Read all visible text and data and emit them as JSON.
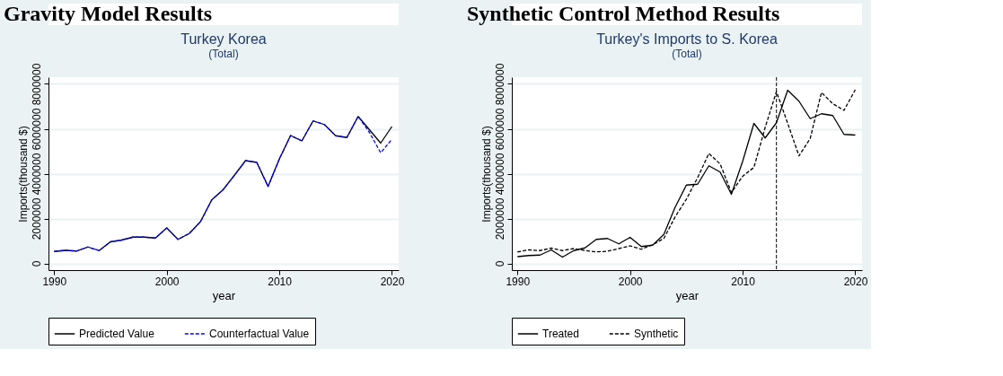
{
  "chart_data": [
    {
      "type": "line",
      "title": "Turkey Korea",
      "subtitle": "(Total)",
      "xlabel": "year",
      "ylabel": "Imports(thousand $)",
      "annotations": [
        "Gravity Model Results"
      ],
      "x": [
        1990,
        1991,
        1992,
        1993,
        1994,
        1995,
        1996,
        1997,
        1998,
        1999,
        2000,
        2001,
        2002,
        2003,
        2004,
        2005,
        2006,
        2007,
        2008,
        2009,
        2010,
        2011,
        2012,
        2013,
        2014,
        2015,
        2016,
        2017,
        2018,
        2019,
        2020
      ],
      "series": [
        {
          "name": "Predicted Value",
          "color": "#000000",
          "line_style": "solid",
          "values": [
            530000,
            580000,
            550000,
            730000,
            570000,
            960000,
            1040000,
            1170000,
            1170000,
            1130000,
            1580000,
            1070000,
            1330000,
            1860000,
            2830000,
            3280000,
            3920000,
            4580000,
            4500000,
            3430000,
            4650000,
            5700000,
            5460000,
            6350000,
            6190000,
            5690000,
            5610000,
            6550000,
            5960000,
            5360000,
            6100000
          ]
        },
        {
          "name": "Counterfactual Value",
          "color": "#0000ff",
          "line_style": "dashed",
          "values": [
            530000,
            580000,
            550000,
            730000,
            570000,
            960000,
            1040000,
            1170000,
            1170000,
            1130000,
            1580000,
            1070000,
            1330000,
            1860000,
            2830000,
            3280000,
            3920000,
            4580000,
            4500000,
            3430000,
            4650000,
            5700000,
            5460000,
            6350000,
            6190000,
            5690000,
            5610000,
            6550000,
            5840000,
            4930000,
            5530000
          ]
        }
      ],
      "xlim": [
        1989.5,
        2020.6
      ],
      "xticks": [
        1990,
        2000,
        2010,
        2020
      ],
      "ylim": [
        -300000,
        8300000
      ],
      "yticks": [
        0,
        2000000,
        4000000,
        6000000,
        8000000
      ],
      "grid": "y",
      "legend": "bottom",
      "marker": "none"
    },
    {
      "type": "line",
      "title": "Turkey's Imports to S. Korea",
      "subtitle": "(Total)",
      "xlabel": "year",
      "ylabel": "Imports(thousand $)",
      "annotations": [
        "Synthetic Control Method Results"
      ],
      "x": [
        1990,
        1991,
        1992,
        1993,
        1994,
        1995,
        1996,
        1997,
        1998,
        1999,
        2000,
        2001,
        2002,
        2003,
        2004,
        2005,
        2006,
        2007,
        2008,
        2009,
        2010,
        2011,
        2012,
        2013,
        2014,
        2015,
        2016,
        2017,
        2018,
        2019,
        2020
      ],
      "series": [
        {
          "name": "Treated",
          "color": "#000000",
          "line_style": "solid",
          "values": [
            300000,
            350000,
            370000,
            600000,
            280000,
            570000,
            690000,
            1070000,
            1110000,
            870000,
            1160000,
            750000,
            810000,
            1290000,
            2500000,
            3490000,
            3530000,
            4350000,
            4070000,
            3080000,
            4550000,
            6240000,
            5590000,
            6270000,
            7720000,
            7230000,
            6450000,
            6670000,
            6590000,
            5750000,
            5720000
          ]
        },
        {
          "name": "Synthetic",
          "color": "#000000",
          "line_style": "dashed",
          "values": [
            510000,
            600000,
            570000,
            680000,
            570000,
            660000,
            570000,
            510000,
            540000,
            660000,
            780000,
            630000,
            830000,
            1110000,
            2070000,
            2860000,
            3820000,
            4900000,
            4430000,
            3160000,
            3880000,
            4280000,
            6060000,
            7660000,
            6240000,
            4790000,
            5570000,
            7620000,
            7120000,
            6820000,
            7740000
          ]
        }
      ],
      "ref_lines": [
        {
          "axis": "x",
          "value": 2013,
          "color": "#000000",
          "line_style": "dashed"
        }
      ],
      "xlim": [
        1989.5,
        2020.6
      ],
      "xticks": [
        1990,
        2000,
        2010,
        2020
      ],
      "ylim": [
        -300000,
        8300000
      ],
      "yticks": [
        0,
        2000000,
        4000000,
        6000000,
        8000000
      ],
      "grid": "y",
      "legend": "bottom",
      "marker": "none"
    }
  ]
}
